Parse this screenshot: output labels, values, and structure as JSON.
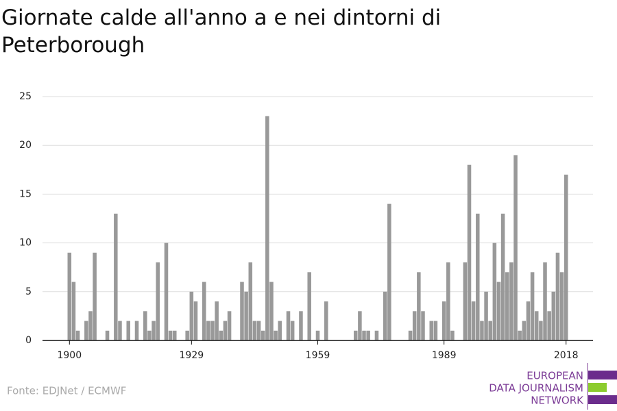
{
  "chart_data": {
    "type": "bar",
    "title": "Giornate calde all'anno a e nei dintorni di Peterborough",
    "source": "Fonte: EDJNet / ECMWF",
    "logo": [
      "EUROPEAN",
      "DATA JOURNALISM",
      "NETWORK"
    ],
    "color": "#999999",
    "grid": true,
    "x": [
      1900,
      1901,
      1902,
      1903,
      1904,
      1905,
      1906,
      1907,
      1908,
      1909,
      1910,
      1911,
      1912,
      1913,
      1914,
      1915,
      1916,
      1917,
      1918,
      1919,
      1920,
      1921,
      1922,
      1923,
      1924,
      1925,
      1926,
      1927,
      1928,
      1929,
      1930,
      1931,
      1932,
      1933,
      1934,
      1935,
      1936,
      1937,
      1938,
      1939,
      1940,
      1941,
      1942,
      1943,
      1944,
      1945,
      1946,
      1947,
      1948,
      1949,
      1950,
      1951,
      1952,
      1953,
      1954,
      1955,
      1956,
      1957,
      1958,
      1959,
      1960,
      1961,
      1962,
      1963,
      1964,
      1965,
      1966,
      1967,
      1968,
      1969,
      1970,
      1971,
      1972,
      1973,
      1974,
      1975,
      1976,
      1977,
      1978,
      1979,
      1980,
      1981,
      1982,
      1983,
      1984,
      1985,
      1986,
      1987,
      1988,
      1989,
      1990,
      1991,
      1992,
      1993,
      1994,
      1995,
      1996,
      1997,
      1998,
      1999,
      2000,
      2001,
      2002,
      2003,
      2004,
      2005,
      2006,
      2007,
      2008,
      2009,
      2010,
      2011,
      2012,
      2013,
      2014,
      2015,
      2016,
      2017,
      2018
    ],
    "values": [
      9,
      6,
      1,
      0,
      2,
      3,
      9,
      0,
      0,
      1,
      0,
      13,
      2,
      0,
      2,
      0,
      2,
      0,
      3,
      1,
      2,
      8,
      0,
      10,
      1,
      1,
      0,
      0,
      1,
      5,
      4,
      0,
      6,
      2,
      2,
      4,
      1,
      2,
      3,
      0,
      0,
      6,
      5,
      8,
      2,
      2,
      1,
      23,
      6,
      1,
      2,
      0,
      3,
      2,
      0,
      3,
      0,
      7,
      0,
      1,
      0,
      4,
      0,
      0,
      0,
      0,
      0,
      0,
      1,
      3,
      1,
      1,
      0,
      1,
      0,
      5,
      14,
      0,
      0,
      0,
      0,
      1,
      3,
      7,
      3,
      0,
      2,
      2,
      0,
      4,
      8,
      1,
      0,
      0,
      8,
      18,
      4,
      13,
      2,
      5,
      2,
      10,
      6,
      13,
      7,
      8,
      19,
      1,
      2,
      4,
      7,
      3,
      2,
      8,
      3,
      5,
      9,
      7,
      17
    ],
    "xlim": [
      1893.6,
      2024.4
    ],
    "xticks": [
      1900,
      1929,
      1959,
      1989,
      2018
    ],
    "ylim": [
      0,
      25
    ],
    "yticks": [
      0,
      5,
      10,
      15,
      20,
      25
    ]
  }
}
